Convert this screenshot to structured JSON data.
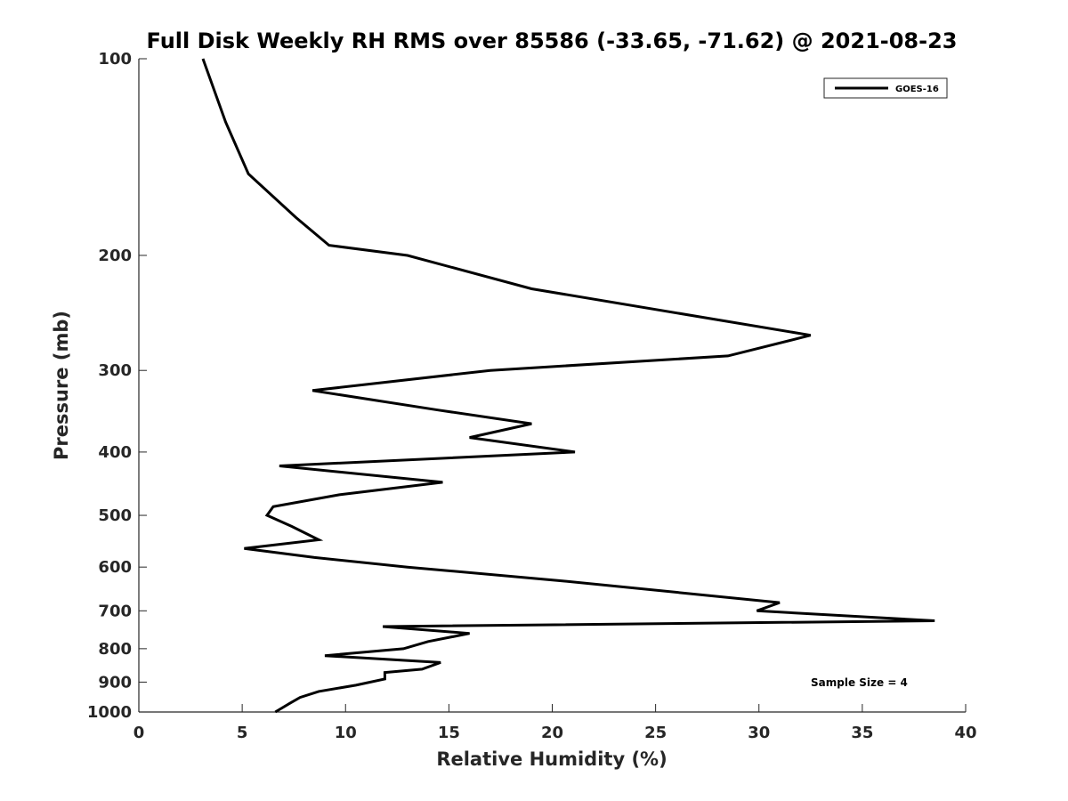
{
  "chart_data": {
    "type": "line",
    "title": "Full Disk Weekly RH RMS over 85586 (-33.65, -71.62) @ 2021-08-23",
    "xlabel": "Relative Humidity (%)",
    "ylabel": "Pressure (mb)",
    "xlim": [
      0,
      40
    ],
    "ylim": [
      100,
      1000
    ],
    "y_scale": "log",
    "y_reversed": true,
    "x_ticks": [
      0,
      5,
      10,
      15,
      20,
      25,
      30,
      35,
      40
    ],
    "y_ticks": [
      100,
      200,
      300,
      400,
      500,
      600,
      700,
      800,
      900,
      1000
    ],
    "grid": false,
    "legend": {
      "position": "top-right",
      "entries": [
        "GOES-16"
      ]
    },
    "annotation": "Sample Size = 4",
    "series": [
      {
        "name": "GOES-16",
        "color": "#000000",
        "points": [
          [
            3.1,
            100
          ],
          [
            4.2,
            125
          ],
          [
            5.3,
            150
          ],
          [
            7.6,
            175
          ],
          [
            9.2,
            193
          ],
          [
            13.0,
            200
          ],
          [
            19.0,
            225
          ],
          [
            32.5,
            265
          ],
          [
            28.5,
            285
          ],
          [
            17.0,
            300
          ],
          [
            8.4,
            322
          ],
          [
            14.5,
            345
          ],
          [
            19.0,
            362
          ],
          [
            16.0,
            380
          ],
          [
            21.1,
            400
          ],
          [
            6.8,
            420
          ],
          [
            14.7,
            445
          ],
          [
            9.7,
            465
          ],
          [
            6.5,
            485
          ],
          [
            6.2,
            500
          ],
          [
            7.4,
            520
          ],
          [
            8.7,
            545
          ],
          [
            5.1,
            562
          ],
          [
            8.5,
            580
          ],
          [
            13.0,
            600
          ],
          [
            20.5,
            630
          ],
          [
            31.0,
            680
          ],
          [
            29.9,
            700
          ],
          [
            38.5,
            725
          ],
          [
            11.8,
            740
          ],
          [
            16.0,
            758
          ],
          [
            14.0,
            780
          ],
          [
            12.8,
            800
          ],
          [
            9.0,
            820
          ],
          [
            14.6,
            840
          ],
          [
            13.7,
            860
          ],
          [
            11.9,
            870
          ],
          [
            11.9,
            890
          ],
          [
            10.5,
            910
          ],
          [
            8.7,
            930
          ],
          [
            7.8,
            950
          ],
          [
            7.3,
            970
          ],
          [
            6.6,
            1000
          ]
        ]
      }
    ]
  }
}
